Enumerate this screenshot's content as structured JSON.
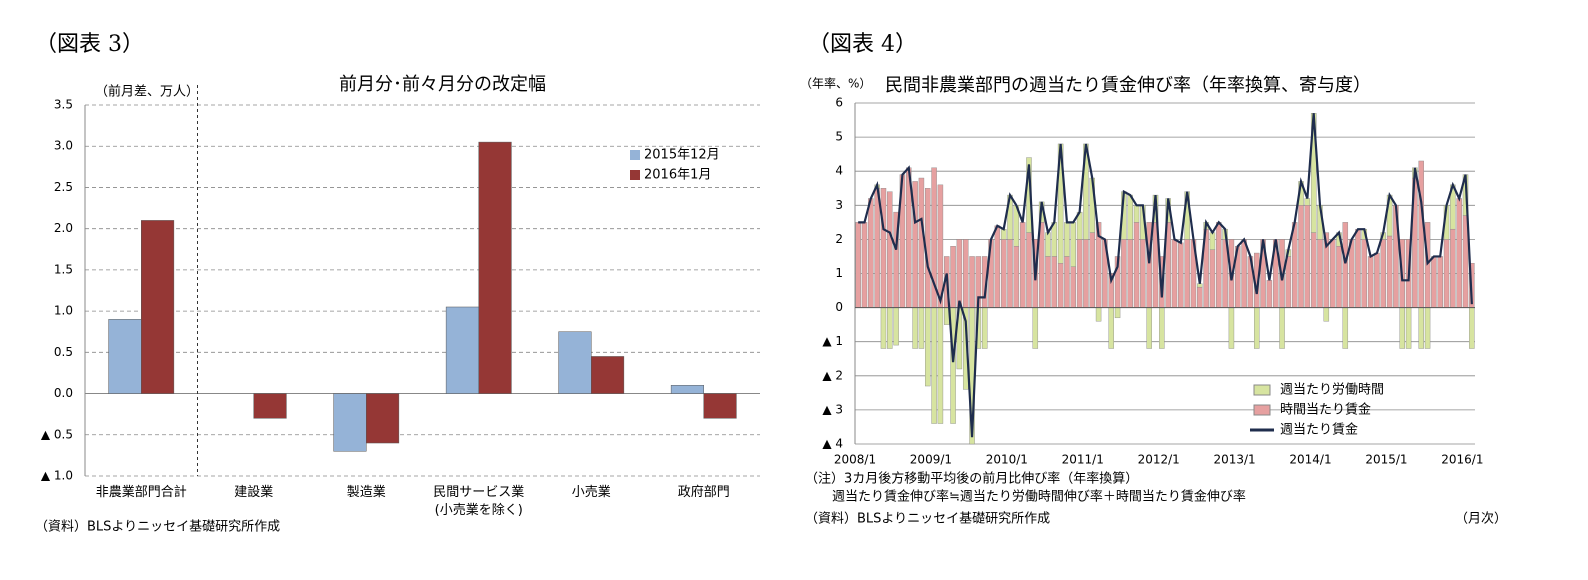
{
  "chart_data": [
    {
      "type": "bar",
      "heading": "（図表 3）",
      "title": "前月分･前々月分の改定幅",
      "y_label": "（前月差、万人）",
      "source": "（資料）BLSよりニッセイ基礎研究所作成",
      "categories": [
        "非農業部門合計",
        "建設業",
        "製造業",
        "民間サービス業\n(小売業を除く)",
        "小売業",
        "政府部門"
      ],
      "series": [
        {
          "name": "2015年12月",
          "color": "#95b3d7",
          "values": [
            0.9,
            0,
            -0.7,
            1.05,
            0.75,
            0.1
          ]
        },
        {
          "name": "2016年1月",
          "color": "#953735",
          "values": [
            2.1,
            -0.3,
            -0.6,
            3.05,
            0.45,
            -0.3
          ]
        }
      ],
      "ylim": [
        -1,
        3.5
      ],
      "yticks": [
        {
          "value": -1,
          "label": "▲ 1.0"
        },
        {
          "value": -0.5,
          "label": "▲ 0.5"
        },
        {
          "value": 0,
          "label": "0.0"
        },
        0.5,
        {
          "value": 1,
          "label": "1.0"
        },
        1.5,
        {
          "value": 2,
          "label": "2.0"
        },
        2.5,
        {
          "value": 3,
          "label": "3.0"
        },
        3.5
      ],
      "grid": true,
      "legend": "upper right"
    },
    {
      "type": "combo",
      "heading": "（図表 4）",
      "title": "民間非農業部門の週当たり賃金伸び率（年率換算、寄与度）",
      "y_label": "（年率、%）",
      "notes": [
        "（注）3カ月後方移動平均後の前月比伸び率（年率換算）",
        "週当たり賃金伸び率≒週当たり労働時間伸び率＋時間当たり賃金伸び率"
      ],
      "source": "（資料）BLSよりニッセイ基礎研究所作成",
      "x_unit": "（月次）",
      "categories": [
        "2008/1",
        null,
        null,
        null,
        null,
        null,
        null,
        null,
        null,
        null,
        null,
        null,
        "2009/1",
        null,
        null,
        null,
        null,
        null,
        null,
        null,
        null,
        null,
        null,
        null,
        "2010/1",
        null,
        null,
        null,
        null,
        null,
        null,
        null,
        null,
        null,
        null,
        null,
        "2011/1",
        null,
        null,
        null,
        null,
        null,
        null,
        null,
        null,
        null,
        null,
        null,
        "2012/1",
        null,
        null,
        null,
        null,
        null,
        null,
        null,
        null,
        null,
        null,
        null,
        "2013/1",
        null,
        null,
        null,
        null,
        null,
        null,
        null,
        null,
        null,
        null,
        null,
        "2014/1",
        null,
        null,
        null,
        null,
        null,
        null,
        null,
        null,
        null,
        null,
        null,
        "2015/1",
        null,
        null,
        null,
        null,
        null,
        null,
        null,
        null,
        null,
        null,
        null,
        "2016/1",
        null
      ],
      "series": [
        {
          "name": "週当たり労働時間",
          "color": "#d7e4a0",
          "kind": "bar",
          "values": [
            0,
            0,
            0,
            0.1,
            -1.2,
            -1.2,
            -1.1,
            0,
            0,
            -1.2,
            -1.2,
            -2.3,
            -3.4,
            -3.4,
            -0.5,
            -3.4,
            -1.8,
            -2.4,
            -4.0,
            -1.2,
            -1.2,
            0,
            0,
            0.3,
            1.3,
            1.2,
            0,
            2.2,
            -1.2,
            0.6,
            0.7,
            1.0,
            3.5,
            1.0,
            1.3,
            0.8,
            2.8,
            1.6,
            -0.4,
            0,
            -1.2,
            -0.3,
            1.4,
            1.3,
            0.5,
            1.0,
            -1.2,
            0.8,
            -1.2,
            0.7,
            0,
            0,
            1.4,
            0,
            0.1,
            0.2,
            0.5,
            0,
            0.3,
            -1.2,
            0,
            0,
            0,
            -1.2,
            0,
            0,
            0,
            -1.2,
            0.2,
            0,
            0.7,
            0.2,
            3.5,
            1.0,
            -0.4,
            0,
            0.4,
            -1.2,
            0,
            0,
            0.3,
            0,
            0,
            0.2,
            1.2,
            0,
            -1.2,
            -1.2,
            0.3,
            -1.2,
            -1.2,
            0,
            0,
            1.0,
            1.3,
            0,
            1.2,
            -1.2
          ]
        },
        {
          "name": "時間当たり賃金",
          "color": "#e6a0a0",
          "kind": "bar",
          "values": [
            2.5,
            2.5,
            3.2,
            3.5,
            3.5,
            3.4,
            2.8,
            3.9,
            4.1,
            3.7,
            3.8,
            3.5,
            4.1,
            3.6,
            1.5,
            1.8,
            2.0,
            2.0,
            1.5,
            1.5,
            1.5,
            2.0,
            2.4,
            2.0,
            2.0,
            1.8,
            2.5,
            2.2,
            2.0,
            2.5,
            1.5,
            1.5,
            1.3,
            1.5,
            1.2,
            2.0,
            2.0,
            2.2,
            2.5,
            2.0,
            1.0,
            1.5,
            2.0,
            2.0,
            2.5,
            2.0,
            2.5,
            2.5,
            1.5,
            2.5,
            2.0,
            1.9,
            2.0,
            2.0,
            0.6,
            2.3,
            1.7,
            2.5,
            2.0,
            2.0,
            1.8,
            2.0,
            1.5,
            1.6,
            2.0,
            0.8,
            2.0,
            2.0,
            1.5,
            2.5,
            3.0,
            3.0,
            2.2,
            2.0,
            2.2,
            2.0,
            1.8,
            2.5,
            2.0,
            2.3,
            2.0,
            1.5,
            1.6,
            2.0,
            2.1,
            3.0,
            2.0,
            2.0,
            3.8,
            4.3,
            2.5,
            1.5,
            1.5,
            2.0,
            2.3,
            3.2,
            2.7,
            1.3
          ]
        },
        {
          "name": "週当たり賃金",
          "color": "#1f2d4d",
          "kind": "line",
          "values": [
            2.5,
            2.5,
            3.2,
            3.6,
            2.3,
            2.2,
            1.7,
            3.9,
            4.1,
            2.5,
            2.6,
            1.2,
            0.7,
            0.2,
            1.0,
            -1.6,
            0.2,
            -0.4,
            -3.8,
            0.3,
            0.3,
            2.0,
            2.4,
            2.3,
            3.3,
            3.0,
            2.5,
            4.2,
            0.8,
            3.1,
            2.2,
            2.5,
            4.8,
            2.5,
            2.5,
            2.8,
            4.8,
            3.8,
            2.1,
            2.0,
            0.8,
            1.2,
            3.4,
            3.3,
            3.0,
            3.0,
            1.3,
            3.3,
            0.3,
            3.2,
            2.0,
            1.9,
            3.4,
            2.0,
            0.7,
            2.5,
            2.2,
            2.5,
            2.3,
            0.8,
            1.8,
            2.0,
            1.5,
            0.4,
            2.0,
            0.8,
            2.0,
            0.8,
            1.7,
            2.5,
            3.7,
            3.2,
            5.7,
            3.0,
            1.8,
            2.0,
            2.2,
            1.3,
            2.0,
            2.3,
            2.3,
            1.5,
            1.6,
            2.2,
            3.3,
            3.0,
            0.8,
            0.8,
            4.1,
            3.1,
            1.3,
            1.5,
            1.5,
            3.0,
            3.6,
            3.2,
            3.9,
            0.1
          ]
        }
      ],
      "ylim": [
        -4,
        6
      ],
      "yticks": [
        {
          "value": -4,
          "label": "▲ 4"
        },
        {
          "value": -3,
          "label": "▲ 3"
        },
        {
          "value": -2,
          "label": "▲ 2"
        },
        {
          "value": -1,
          "label": "▲ 1"
        },
        0,
        1,
        2,
        3,
        4,
        5,
        6
      ],
      "grid": true,
      "legend": "lower right"
    }
  ]
}
